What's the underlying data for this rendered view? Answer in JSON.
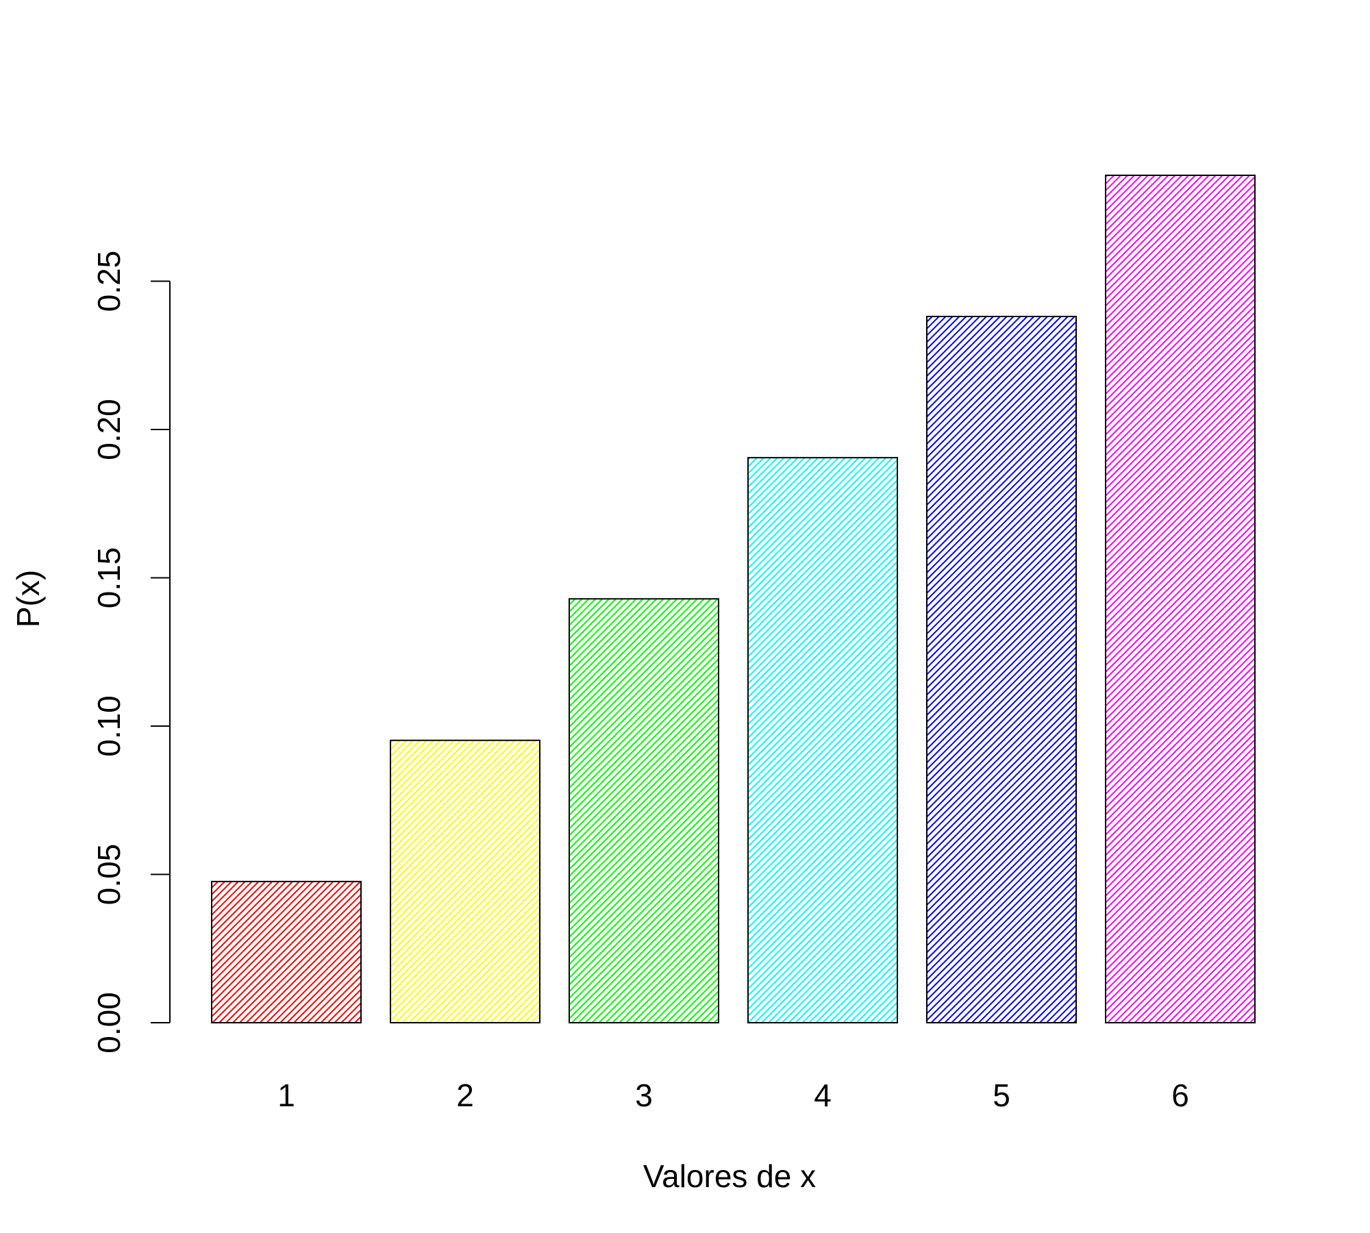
{
  "chart_data": {
    "type": "bar",
    "title": "",
    "xlabel": "Valores de x",
    "ylabel": "P(x)",
    "categories": [
      "1",
      "2",
      "3",
      "4",
      "5",
      "6"
    ],
    "values": [
      0.0476,
      0.0952,
      0.1429,
      0.1905,
      0.2381,
      0.2857
    ],
    "ylim": [
      0,
      0.2857
    ],
    "yticks": [
      "0.00",
      "0.05",
      "0.10",
      "0.15",
      "0.20",
      "0.25"
    ],
    "colors": [
      "#FF0000",
      "#FFFF00",
      "#00FF00",
      "#00FFFF",
      "#0000FF",
      "#FF00FF"
    ],
    "fill": "diagonal-hatch",
    "grid": false,
    "legend": "none"
  }
}
